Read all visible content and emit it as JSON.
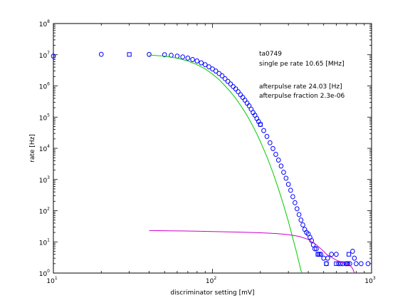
{
  "chart_data": {
    "type": "scatter",
    "xscale": "log",
    "yscale": "log",
    "xlim": [
      10,
      1000
    ],
    "ylim": [
      1,
      100000000
    ],
    "xlabel": "discriminator setting [mV]",
    "ylabel": "rate [Hz]",
    "grid": false,
    "x_ticks": [
      {
        "value": 10,
        "base": "10",
        "exp": "1"
      },
      {
        "value": 100,
        "base": "10",
        "exp": "2"
      },
      {
        "value": 1000,
        "base": "10",
        "exp": "3"
      }
    ],
    "y_ticks": [
      {
        "value": 1,
        "base": "10",
        "exp": "0"
      },
      {
        "value": 10,
        "base": "10",
        "exp": "1"
      },
      {
        "value": 100,
        "base": "10",
        "exp": "2"
      },
      {
        "value": 1000,
        "base": "10",
        "exp": "3"
      },
      {
        "value": 10000,
        "base": "10",
        "exp": "4"
      },
      {
        "value": 100000,
        "base": "10",
        "exp": "5"
      },
      {
        "value": 1000000,
        "base": "10",
        "exp": "6"
      },
      {
        "value": 10000000,
        "base": "10",
        "exp": "7"
      },
      {
        "value": 100000000,
        "base": "10",
        "exp": "8"
      }
    ],
    "annotations": {
      "tube_id": "ta0749",
      "single_pe_rate": "single pe rate 10.65 [MHz]",
      "afterpulse_rate": "afterpulse rate 24.03 [Hz]",
      "afterpulse_fraction": "afterpulse fraction 2.3e-06"
    },
    "series": [
      {
        "marker": "circle",
        "color": "#0000ff",
        "points": [
          [
            10,
            9000000
          ],
          [
            20,
            10300000
          ],
          [
            40,
            10200000
          ],
          [
            50,
            10000000
          ],
          [
            55,
            9600000
          ],
          [
            60,
            9000000
          ],
          [
            65,
            8500000
          ],
          [
            70,
            7800000
          ],
          [
            75,
            7000000
          ],
          [
            80,
            6300000
          ],
          [
            85,
            5500000
          ],
          [
            90,
            4800000
          ],
          [
            95,
            4100000
          ],
          [
            100,
            3500000
          ],
          [
            105,
            3000000
          ],
          [
            110,
            2500000
          ],
          [
            115,
            2100000
          ],
          [
            120,
            1700000
          ],
          [
            125,
            1400000
          ],
          [
            130,
            1150000
          ],
          [
            135,
            950000
          ],
          [
            140,
            800000
          ],
          [
            145,
            650000
          ],
          [
            150,
            520000
          ],
          [
            155,
            430000
          ],
          [
            160,
            350000
          ],
          [
            165,
            280000
          ],
          [
            170,
            230000
          ],
          [
            175,
            180000
          ],
          [
            180,
            140000
          ],
          [
            185,
            115000
          ],
          [
            190,
            90000
          ],
          [
            195,
            72000
          ],
          [
            200,
            58000
          ],
          [
            210,
            37000
          ],
          [
            220,
            24000
          ],
          [
            230,
            15000
          ],
          [
            240,
            9800
          ],
          [
            250,
            6400
          ],
          [
            260,
            4200
          ],
          [
            270,
            2700
          ],
          [
            280,
            1700
          ],
          [
            290,
            1100
          ],
          [
            300,
            700
          ],
          [
            310,
            450
          ],
          [
            320,
            280
          ],
          [
            330,
            180
          ],
          [
            340,
            115
          ],
          [
            350,
            75
          ],
          [
            360,
            50
          ],
          [
            370,
            35
          ],
          [
            380,
            25
          ],
          [
            390,
            20
          ],
          [
            400,
            18
          ],
          [
            410,
            14
          ],
          [
            420,
            11
          ],
          [
            430,
            8
          ],
          [
            440,
            6
          ],
          [
            450,
            6
          ],
          [
            460,
            4
          ],
          [
            470,
            4
          ],
          [
            480,
            4
          ],
          [
            500,
            3
          ],
          [
            520,
            2
          ],
          [
            530,
            3
          ],
          [
            560,
            4
          ],
          [
            600,
            4
          ],
          [
            620,
            2
          ],
          [
            640,
            2
          ],
          [
            660,
            2
          ],
          [
            690,
            2
          ],
          [
            710,
            2
          ],
          [
            730,
            2
          ],
          [
            760,
            5
          ],
          [
            780,
            3
          ],
          [
            800,
            2
          ],
          [
            860,
            2
          ],
          [
            950,
            2
          ]
        ]
      },
      {
        "marker": "square",
        "color": "#0000ff",
        "points": [
          [
            30,
            10200000
          ],
          [
            200,
            58000
          ],
          [
            460,
            4
          ],
          [
            520,
            2
          ],
          [
            600,
            2
          ],
          [
            700,
            2
          ],
          [
            720,
            4
          ]
        ]
      },
      {
        "marker": "line",
        "color": "#00cc00",
        "points": [
          [
            40,
            9800000
          ],
          [
            50,
            9000000
          ],
          [
            60,
            7800000
          ],
          [
            70,
            6300000
          ],
          [
            80,
            4800000
          ],
          [
            90,
            3500000
          ],
          [
            100,
            2400000
          ],
          [
            110,
            1600000
          ],
          [
            120,
            1000000
          ],
          [
            130,
            640000
          ],
          [
            140,
            400000
          ],
          [
            150,
            240000
          ],
          [
            160,
            145000
          ],
          [
            170,
            86000
          ],
          [
            180,
            50000
          ],
          [
            190,
            29000
          ],
          [
            200,
            16500
          ],
          [
            220,
            5300
          ],
          [
            240,
            1650
          ],
          [
            260,
            500
          ],
          [
            280,
            150
          ],
          [
            300,
            45
          ],
          [
            320,
            13
          ],
          [
            340,
            4
          ],
          [
            360,
            1.2
          ],
          [
            365,
            1
          ]
        ]
      },
      {
        "marker": "line",
        "color": "#cc00cc",
        "points": [
          [
            40,
            23
          ],
          [
            60,
            22.5
          ],
          [
            80,
            22
          ],
          [
            100,
            21.5
          ],
          [
            150,
            20.5
          ],
          [
            200,
            19.5
          ],
          [
            250,
            18.5
          ],
          [
            300,
            17
          ],
          [
            350,
            15
          ],
          [
            400,
            12
          ],
          [
            450,
            8
          ],
          [
            500,
            5
          ],
          [
            520,
            4
          ],
          [
            560,
            3.2
          ],
          [
            600,
            2.6
          ],
          [
            650,
            2.2
          ],
          [
            700,
            2
          ],
          [
            730,
            1.8
          ],
          [
            760,
            1.4
          ],
          [
            780,
            1
          ]
        ]
      }
    ]
  }
}
